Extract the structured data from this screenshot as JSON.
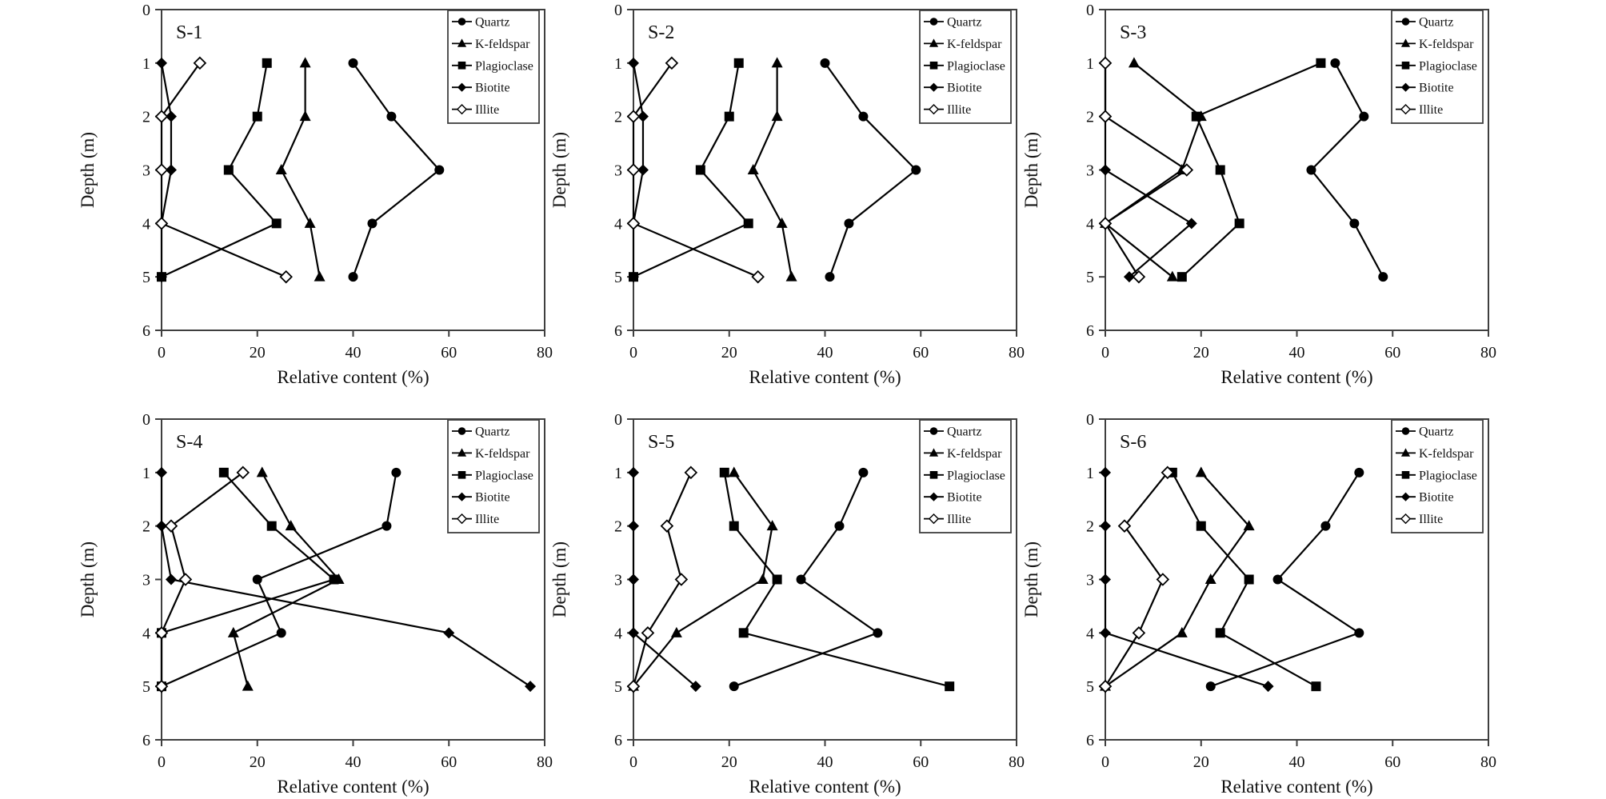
{
  "figure": {
    "x_label": "Relative content (%)",
    "y_label": "Depth (m)",
    "x_ticks": [
      0,
      20,
      40,
      60,
      80
    ],
    "y_ticks": [
      0,
      1,
      2,
      3,
      4,
      5,
      6
    ],
    "x_range": [
      0,
      80
    ],
    "y_range": [
      0,
      6
    ],
    "colors": {
      "series": "#000000",
      "frame": "#3f3f3f",
      "text": "#111111",
      "open_fill": "#ffffff"
    }
  },
  "legend": {
    "entries": [
      {
        "label": "Quartz",
        "marker": "circle"
      },
      {
        "label": "K-feldspar",
        "marker": "triangle"
      },
      {
        "label": "Plagioclase",
        "marker": "square"
      },
      {
        "label": "Biotite",
        "marker": "diamond"
      },
      {
        "label": "Illite",
        "marker": "diamond-open"
      }
    ]
  },
  "chart_data": [
    {
      "title": "S-1",
      "type": "line",
      "xlabel": "Relative content (%)",
      "ylabel": "Depth (m)",
      "xlim": [
        0,
        80
      ],
      "ylim": [
        0,
        6
      ],
      "depths": [
        1,
        2,
        3,
        4,
        5
      ],
      "series": [
        {
          "name": "Quartz",
          "marker": "circle",
          "values": [
            40,
            48,
            58,
            44,
            40
          ]
        },
        {
          "name": "K-feldspar",
          "marker": "triangle",
          "values": [
            30,
            30,
            25,
            31,
            33
          ]
        },
        {
          "name": "Plagioclase",
          "marker": "square",
          "values": [
            22,
            20,
            14,
            24,
            0
          ]
        },
        {
          "name": "Biotite",
          "marker": "diamond",
          "values": [
            0,
            2,
            2,
            0,
            0
          ]
        },
        {
          "name": "Illite",
          "marker": "diamond-open",
          "values": [
            8,
            0,
            0,
            0,
            26
          ]
        }
      ]
    },
    {
      "title": "S-2",
      "type": "line",
      "xlabel": "Relative content (%)",
      "ylabel": "Depth (m)",
      "xlim": [
        0,
        80
      ],
      "ylim": [
        0,
        6
      ],
      "depths": [
        1,
        2,
        3,
        4,
        5
      ],
      "series": [
        {
          "name": "Quartz",
          "marker": "circle",
          "values": [
            40,
            48,
            59,
            45,
            41
          ]
        },
        {
          "name": "K-feldspar",
          "marker": "triangle",
          "values": [
            30,
            30,
            25,
            31,
            33
          ]
        },
        {
          "name": "Plagioclase",
          "marker": "square",
          "values": [
            22,
            20,
            14,
            24,
            0
          ]
        },
        {
          "name": "Biotite",
          "marker": "diamond",
          "values": [
            0,
            2,
            2,
            0,
            0
          ]
        },
        {
          "name": "Illite",
          "marker": "diamond-open",
          "values": [
            8,
            0,
            0,
            0,
            26
          ]
        }
      ]
    },
    {
      "title": "S-3",
      "type": "line",
      "xlabel": "Relative content (%)",
      "ylabel": "Depth (m)",
      "xlim": [
        0,
        80
      ],
      "ylim": [
        0,
        6
      ],
      "depths": [
        1,
        2,
        3,
        4,
        5
      ],
      "series": [
        {
          "name": "Quartz",
          "marker": "circle",
          "values": [
            48,
            54,
            43,
            52,
            58
          ]
        },
        {
          "name": "K-feldspar",
          "marker": "triangle",
          "values": [
            6,
            20,
            16,
            0,
            14
          ]
        },
        {
          "name": "Plagioclase",
          "marker": "square",
          "values": [
            45,
            19,
            24,
            28,
            16
          ]
        },
        {
          "name": "Biotite",
          "marker": "diamond",
          "values": [
            0,
            0,
            0,
            18,
            5
          ]
        },
        {
          "name": "Illite",
          "marker": "diamond-open",
          "values": [
            0,
            0,
            17,
            0,
            7
          ]
        }
      ]
    },
    {
      "title": "S-4",
      "type": "line",
      "xlabel": "Relative content (%)",
      "ylabel": "Depth (m)",
      "xlim": [
        0,
        80
      ],
      "ylim": [
        0,
        6
      ],
      "depths": [
        1,
        2,
        3,
        4,
        5
      ],
      "series": [
        {
          "name": "Quartz",
          "marker": "circle",
          "values": [
            49,
            47,
            20,
            25,
            0
          ]
        },
        {
          "name": "K-feldspar",
          "marker": "triangle",
          "values": [
            21,
            27,
            37,
            15,
            18
          ]
        },
        {
          "name": "Plagioclase",
          "marker": "square",
          "values": [
            13,
            23,
            36,
            0,
            0
          ]
        },
        {
          "name": "Biotite",
          "marker": "diamond",
          "values": [
            0,
            0,
            2,
            60,
            77
          ]
        },
        {
          "name": "Illite",
          "marker": "diamond-open",
          "values": [
            17,
            2,
            5,
            0,
            0
          ]
        }
      ]
    },
    {
      "title": "S-5",
      "type": "line",
      "xlabel": "Relative content (%)",
      "ylabel": "Depth (m)",
      "xlim": [
        0,
        80
      ],
      "ylim": [
        0,
        6
      ],
      "depths": [
        1,
        2,
        3,
        4,
        5
      ],
      "series": [
        {
          "name": "Quartz",
          "marker": "circle",
          "values": [
            48,
            43,
            35,
            51,
            21
          ]
        },
        {
          "name": "K-feldspar",
          "marker": "triangle",
          "values": [
            21,
            29,
            27,
            9,
            0
          ]
        },
        {
          "name": "Plagioclase",
          "marker": "square",
          "values": [
            19,
            21,
            30,
            23,
            66
          ]
        },
        {
          "name": "Biotite",
          "marker": "diamond",
          "values": [
            0,
            0,
            0,
            0,
            13
          ]
        },
        {
          "name": "Illite",
          "marker": "diamond-open",
          "values": [
            12,
            7,
            10,
            3,
            0
          ]
        }
      ]
    },
    {
      "title": "S-6",
      "type": "line",
      "xlabel": "Relative content (%)",
      "ylabel": "Depth (m)",
      "xlim": [
        0,
        80
      ],
      "ylim": [
        0,
        6
      ],
      "depths": [
        1,
        2,
        3,
        4,
        5
      ],
      "series": [
        {
          "name": "Quartz",
          "marker": "circle",
          "values": [
            53,
            46,
            36,
            53,
            22
          ]
        },
        {
          "name": "K-feldspar",
          "marker": "triangle",
          "values": [
            20,
            30,
            22,
            16,
            0
          ]
        },
        {
          "name": "Plagioclase",
          "marker": "square",
          "values": [
            14,
            20,
            30,
            24,
            44
          ]
        },
        {
          "name": "Biotite",
          "marker": "diamond",
          "values": [
            0,
            0,
            0,
            0,
            34
          ]
        },
        {
          "name": "Illite",
          "marker": "diamond-open",
          "values": [
            13,
            4,
            12,
            7,
            0
          ]
        }
      ]
    }
  ]
}
